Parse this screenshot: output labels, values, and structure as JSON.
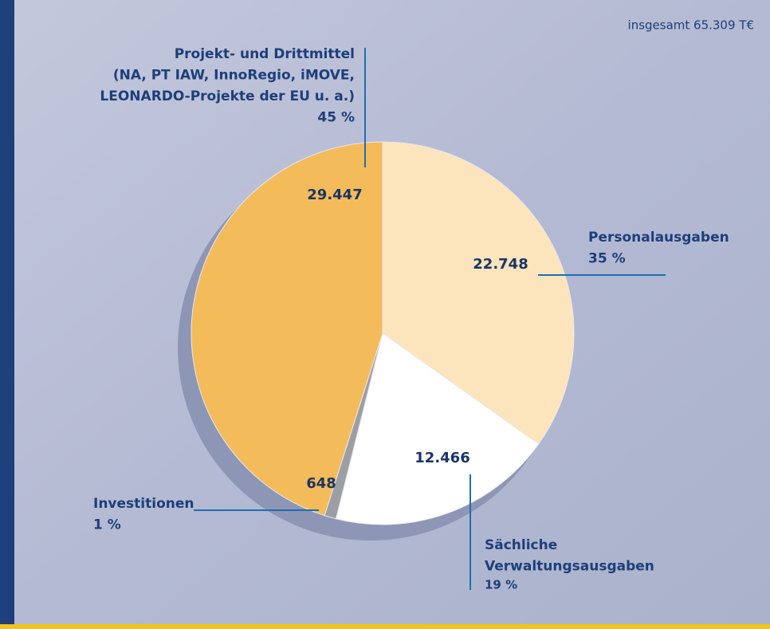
{
  "chart_data": {
    "type": "pie",
    "note": "insgesamt 65.309 T€",
    "categories": [
      [
        "Personalausgaben"
      ],
      [
        "Sächliche",
        "Verwaltungsausgaben"
      ],
      [
        "Investitionen"
      ],
      [
        "Projekt- und Drittmittel",
        "(NA, PT IAW, InnoRegio, iMOVE,",
        "LEONARDO-Projekte der EU u. a.)"
      ]
    ],
    "values": [
      22748,
      12466,
      648,
      29447
    ],
    "value_labels": [
      "22.748",
      "12.466",
      "648",
      "29.447"
    ],
    "percent_labels": [
      "35 %",
      "19 %",
      "1 %",
      "45 %"
    ],
    "colors": [
      "#fce4bd",
      "#ffffff",
      "#9c9ea3",
      "#f4bb5a"
    ]
  }
}
